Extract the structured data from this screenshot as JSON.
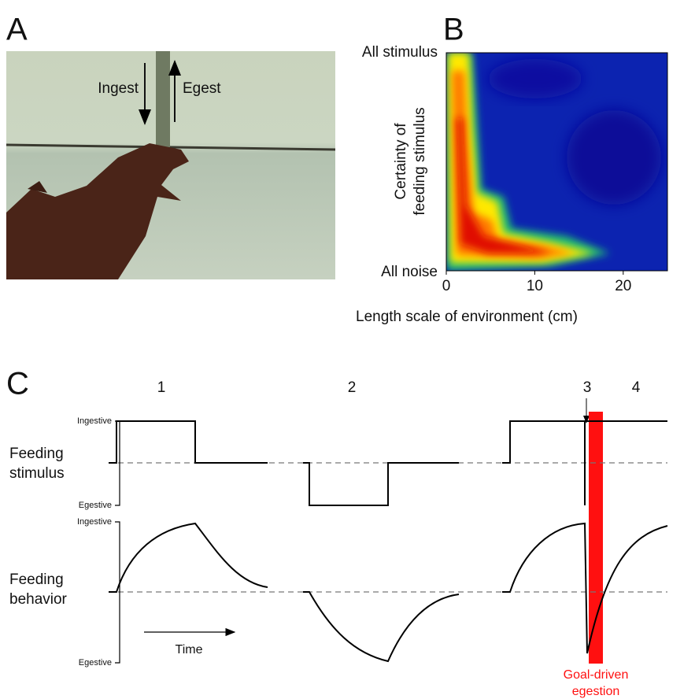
{
  "panels": {
    "a": {
      "label": "A",
      "annotations": [
        "Ingest",
        "Egest"
      ]
    },
    "b": {
      "label": "B",
      "y_ends": [
        "All stimulus",
        "All noise"
      ],
      "y_axis_label_lines": [
        "Certainty of",
        "feeding stimulus"
      ],
      "x_axis_label": "Length scale of environment (cm)",
      "xlim": [
        0,
        25
      ],
      "xticks": [
        0,
        10,
        20
      ]
    },
    "c": {
      "label": "C",
      "phases": [
        "1",
        "2",
        "3",
        "4"
      ],
      "stimulus": {
        "label_lines": [
          "Feeding",
          "stimulus"
        ],
        "y_ends": [
          "Ingestive",
          "Egestive"
        ]
      },
      "behavior": {
        "label_lines": [
          "Feeding",
          "behavior"
        ],
        "y_ends": [
          "Ingestive",
          "Egestive"
        ]
      },
      "time_label": "Time",
      "highlight_label_lines": [
        "Goal-driven",
        "egestion"
      ]
    }
  }
}
